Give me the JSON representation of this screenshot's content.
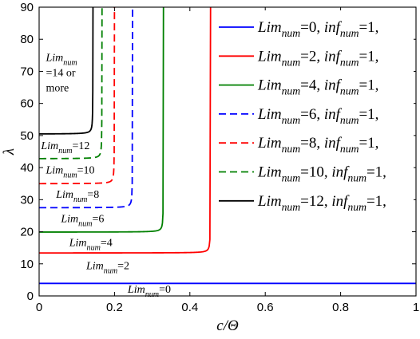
{
  "chart_data": {
    "type": "line",
    "xlabel": "c/Θ",
    "ylabel": "λ",
    "xlim": [
      0,
      1
    ],
    "ylim": [
      0,
      90
    ],
    "xticks": [
      "0",
      "0.2",
      "0.4",
      "0.6",
      "0.8",
      "1"
    ],
    "yticks": [
      "0",
      "10",
      "20",
      "30",
      "40",
      "50",
      "60",
      "70",
      "80",
      "90"
    ],
    "grid": false,
    "legend_position": "right",
    "series": [
      {
        "name": "Lim_num=0, inf_num=1,",
        "legend_parts": [
          "Lim",
          "num",
          "=0, ",
          "inf",
          "num",
          "=1,"
        ],
        "color": "#0000ff",
        "dash": "solid",
        "base": 3.9,
        "asymptote": null
      },
      {
        "name": "Lim_num=2, inf_num=1,",
        "legend_parts": [
          "Lim",
          "num",
          "=2, ",
          "inf",
          "num",
          "=1,"
        ],
        "color": "#ff0000",
        "dash": "solid",
        "base": 13.4,
        "asymptote": 0.455
      },
      {
        "name": "Lim_num=4, inf_num=1,",
        "legend_parts": [
          "Lim",
          "num",
          "=4, ",
          "inf",
          "num",
          "=1,"
        ],
        "color": "#008000",
        "dash": "solid",
        "base": 19.9,
        "asymptote": 0.33
      },
      {
        "name": "Lim_num=6, inf_num=1,",
        "legend_parts": [
          "Lim",
          "num",
          "=6, ",
          "inf",
          "num",
          "=1,"
        ],
        "color": "#0000ff",
        "dash": "dashed",
        "base": 27.5,
        "asymptote": 0.248
      },
      {
        "name": "Lim_num=8, inf_num=1,",
        "legend_parts": [
          "Lim",
          "num",
          "=8, ",
          "inf",
          "num",
          "=1,"
        ],
        "color": "#ff0000",
        "dash": "dashed",
        "base": 35.0,
        "asymptote": 0.2
      },
      {
        "name": "Lim_num=10, inf_num=1,",
        "legend_parts": [
          "Lim",
          "num",
          "=10, ",
          "inf",
          "num",
          "=1,"
        ],
        "color": "#008000",
        "dash": "dashed",
        "base": 42.8,
        "asymptote": 0.167
      },
      {
        "name": "Lim_num=12, inf_num=1,",
        "legend_parts": [
          "Lim",
          "num",
          "=12, ",
          "inf",
          "num",
          "=1,"
        ],
        "color": "#000000",
        "dash": "solid",
        "base": 50.5,
        "asymptote": 0.143
      }
    ],
    "annotations": [
      {
        "id": "lim0",
        "lines": [
          [
            "Lim",
            "num",
            "=0"
          ]
        ],
        "x": 0.235,
        "y": 1.0
      },
      {
        "id": "lim2",
        "lines": [
          [
            "Lim",
            "num",
            "=2"
          ]
        ],
        "x": 0.125,
        "y": 8.3
      },
      {
        "id": "lim4",
        "lines": [
          [
            "Lim",
            "num",
            "=4"
          ]
        ],
        "x": 0.08,
        "y": 15.6
      },
      {
        "id": "lim6",
        "lines": [
          [
            "Lim",
            "num",
            "=6"
          ]
        ],
        "x": 0.058,
        "y": 23.0
      },
      {
        "id": "lim8",
        "lines": [
          [
            "Lim",
            "num",
            "=8"
          ]
        ],
        "x": 0.045,
        "y": 30.6
      },
      {
        "id": "lim10",
        "lines": [
          [
            "Lim",
            "num",
            "=10"
          ]
        ],
        "x": 0.018,
        "y": 38.2
      },
      {
        "id": "lim12",
        "lines": [
          [
            "Lim",
            "num",
            "=12"
          ]
        ],
        "x": 0.005,
        "y": 45.8
      },
      {
        "id": "lim14",
        "lines": [
          [
            "Lim",
            "num",
            ""
          ],
          [
            "",
            "",
            "=14 or"
          ],
          [
            "",
            "",
            "more"
          ]
        ],
        "x": 0.018,
        "y": 73.2
      }
    ]
  }
}
